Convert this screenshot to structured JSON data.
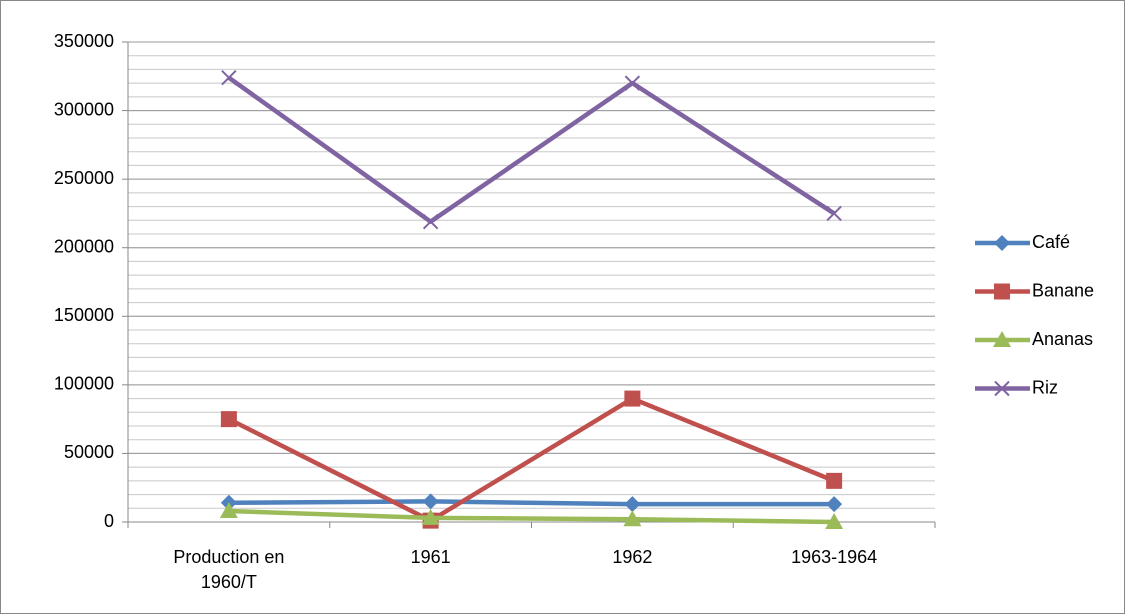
{
  "chart_data": {
    "type": "line",
    "categories": [
      "Production en 1960/T",
      "1961",
      "1962",
      "1963-1964"
    ],
    "series": [
      {
        "name": "Café",
        "color": "#4f81bd",
        "marker": "diamond",
        "values": [
          14000,
          15000,
          13000,
          13000
        ]
      },
      {
        "name": "Banane",
        "color": "#c0504d",
        "marker": "square",
        "values": [
          75000,
          1000,
          90000,
          30000
        ]
      },
      {
        "name": "Ananas",
        "color": "#9bbb59",
        "marker": "triangle",
        "values": [
          8000,
          3000,
          2000,
          0
        ]
      },
      {
        "name": "Riz",
        "color": "#8064a2",
        "marker": "x",
        "values": [
          324000,
          219000,
          320000,
          225000
        ]
      }
    ],
    "ylim": [
      0,
      350000
    ],
    "yticks": [
      0,
      50000,
      100000,
      150000,
      200000,
      250000,
      300000,
      350000
    ],
    "grid": true,
    "minor_grid": 10000,
    "legend": "right"
  }
}
